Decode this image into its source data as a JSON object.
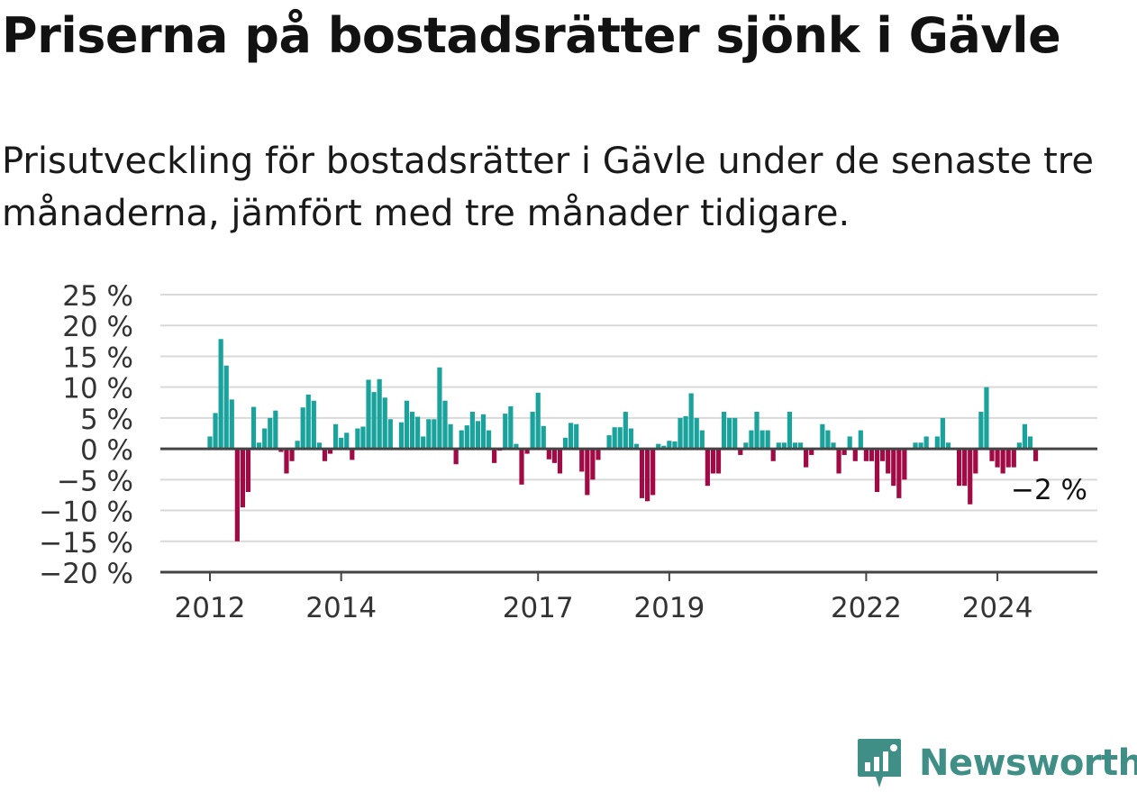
{
  "title": "Priserna på bostadsrätter sjönk i Gävle",
  "subtitle": "Prisutveckling för bostadsrätter i Gävle under de senaste tre månaderna, jämfört med tre månader tidigare.",
  "brand": {
    "name": "Newsworthy",
    "color": "#3f8f86"
  },
  "colors": {
    "positive": "#1aa39c",
    "negative": "#a10a44",
    "grid": "#d9d9d9",
    "axis": "#444444"
  },
  "chart_data": {
    "type": "bar",
    "ylim": [
      -20,
      25
    ],
    "yticks": [
      "25 %",
      "20 %",
      "15 %",
      "10 %",
      "5 %",
      "0 %",
      "−5 %",
      "−10 %",
      "−15 %",
      "−20 %"
    ],
    "ytick_values": [
      25,
      20,
      15,
      10,
      5,
      0,
      -5,
      -10,
      -15,
      -20
    ],
    "xticks": [
      "2012",
      "2014",
      "2017",
      "2019",
      "2022",
      "2024"
    ],
    "xtick_values": [
      "2012-01",
      "2014-01",
      "2017-01",
      "2019-01",
      "2022-01",
      "2024-01"
    ],
    "start": "2012-01",
    "values": [
      2,
      5.8,
      17.8,
      13.5,
      8,
      -15,
      -9.5,
      -7,
      6.8,
      1,
      3.3,
      5,
      6.2,
      -0.5,
      -4,
      -2,
      1.3,
      6.7,
      8.8,
      7.8,
      1,
      -2,
      -0.8,
      4,
      1.8,
      2.6,
      -1.8,
      3.3,
      3.6,
      11.2,
      9.2,
      11.3,
      8.3,
      4.8,
      null,
      4.3,
      7.8,
      6,
      5.2,
      2,
      4.8,
      4.8,
      13.2,
      7.8,
      4,
      -2.5,
      3,
      3.8,
      6,
      4.5,
      5.6,
      3,
      -2.3,
      -0.3,
      5.7,
      6.9,
      0.8,
      -5.8,
      -0.8,
      6,
      9.1,
      3.7,
      -1.7,
      -2.3,
      -4,
      1.8,
      4.2,
      4,
      -3.7,
      -7.5,
      -5,
      -1.8,
      null,
      2.2,
      3.5,
      3.5,
      6,
      3.3,
      0.8,
      -8,
      -8.5,
      -7.5,
      0.8,
      0.5,
      1.3,
      1.2,
      5,
      5.3,
      9,
      5,
      3,
      -6,
      -4,
      -4,
      6,
      5,
      5,
      -1,
      1,
      3,
      6,
      3,
      3,
      -2,
      1,
      1,
      6,
      1,
      1,
      -3,
      -1,
      null,
      4,
      3,
      1,
      -4,
      -1,
      2,
      -2,
      3,
      -2,
      -2,
      -7,
      -2,
      -4,
      -6,
      -8,
      -5,
      null,
      1,
      1,
      2,
      null,
      2,
      5,
      1,
      null,
      -6,
      -6,
      -9,
      -4,
      6,
      10,
      -2,
      -3,
      -4,
      -3,
      -3,
      1,
      4,
      2,
      -2
    ],
    "annotation": "−2 %"
  }
}
